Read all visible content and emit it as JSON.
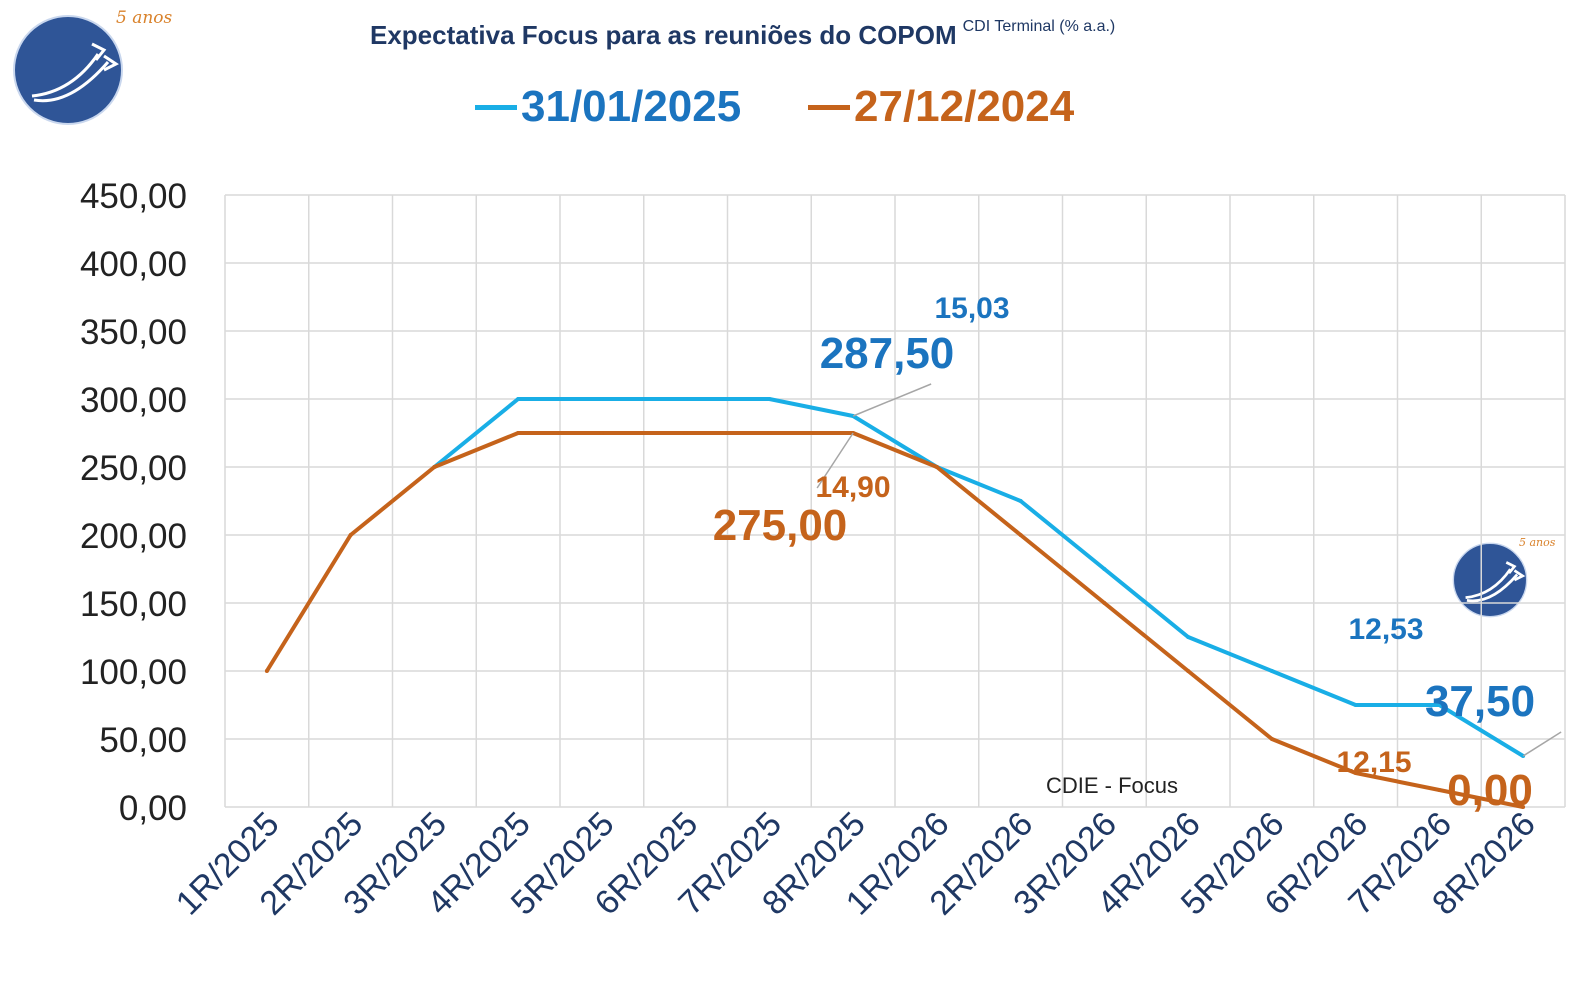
{
  "header": {
    "title": "Expectativa Focus para as reuniões do COPOM",
    "title_sup": "CDI Terminal (% a.a.)"
  },
  "logo": {
    "caption": "5 anos",
    "icon": "arrow-logo-icon"
  },
  "source_note": "CDIE - Focus",
  "colors": {
    "series_2025": "#19aee6",
    "series_2024": "#c5631b",
    "axis_text": "#1f3864",
    "grid": "#d9d9d9"
  },
  "chart_data": {
    "type": "line",
    "title": "Expectativa Focus para as reuniões do COPOM",
    "categories": [
      "1R/2025",
      "2R/2025",
      "3R/2025",
      "4R/2025",
      "5R/2025",
      "6R/2025",
      "7R/2025",
      "8R/2025",
      "1R/2026",
      "2R/2026",
      "3R/2026",
      "4R/2026",
      "5R/2026",
      "6R/2026",
      "7R/2026",
      "8R/2026"
    ],
    "y_ticks": [
      "0,00",
      "50,00",
      "100,00",
      "150,00",
      "200,00",
      "250,00",
      "300,00",
      "350,00",
      "400,00",
      "450,00"
    ],
    "ylim": [
      0,
      450
    ],
    "grid": true,
    "legend_position": "top",
    "series": [
      {
        "name": "31/01/2025",
        "color": "#19aee6",
        "values": [
          null,
          null,
          250,
          300,
          300,
          300,
          300,
          287.5,
          250,
          225,
          175,
          125,
          100,
          75,
          75,
          37.5
        ]
      },
      {
        "name": "27/12/2024",
        "color": "#c5631b",
        "values": [
          100,
          200,
          250,
          275,
          275,
          275,
          275,
          275,
          250,
          200,
          150,
          100,
          50,
          25,
          12.5,
          0
        ]
      }
    ],
    "annotations": [
      {
        "series": 0,
        "index": 7,
        "value": "287,50",
        "rate": "15,03"
      },
      {
        "series": 1,
        "index": 7,
        "value": "275,00",
        "rate": "14,90"
      },
      {
        "series": 0,
        "index": 15,
        "value": "37,50",
        "rate": "12,53"
      },
      {
        "series": 1,
        "index": 15,
        "value": "0,00",
        "rate": "12,15"
      }
    ]
  }
}
